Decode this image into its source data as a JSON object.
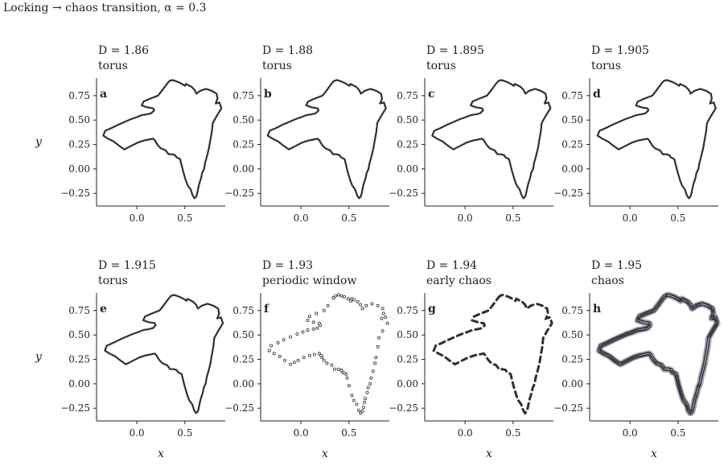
{
  "figure": {
    "title": "Locking → chaos transition, α = 0.3"
  },
  "chart_data": [
    {
      "type": "line",
      "panel_label": "a",
      "d_label": "D = 1.86",
      "regime": "torus",
      "render": "line",
      "xlabel": "",
      "ylabel": "y",
      "xticks": [
        "0.0",
        "0.5"
      ],
      "yticks": [
        "0.75",
        "0.50",
        "0.25",
        "0.00",
        "−0.25"
      ],
      "xlim": [
        -0.42,
        0.92
      ],
      "ylim": [
        -0.38,
        0.93
      ],
      "grid": false
    },
    {
      "type": "line",
      "panel_label": "b",
      "d_label": "D = 1.88",
      "regime": "torus",
      "render": "line",
      "xlabel": "",
      "ylabel": "",
      "xticks": [
        "0.0",
        "0.5"
      ],
      "yticks": [
        "0.75",
        "0.50",
        "0.25",
        "0.00",
        "−0.25"
      ],
      "xlim": [
        -0.42,
        0.92
      ],
      "ylim": [
        -0.38,
        0.93
      ],
      "grid": false
    },
    {
      "type": "line",
      "panel_label": "c",
      "d_label": "D = 1.895",
      "regime": "torus",
      "render": "line",
      "xlabel": "",
      "ylabel": "",
      "xticks": [
        "0.0",
        "0.5"
      ],
      "yticks": [
        "0.75",
        "0.50",
        "0.25",
        "0.00",
        "−0.25"
      ],
      "xlim": [
        -0.42,
        0.92
      ],
      "ylim": [
        -0.38,
        0.93
      ],
      "grid": false
    },
    {
      "type": "line",
      "panel_label": "d",
      "d_label": "D = 1.905",
      "regime": "torus",
      "render": "line",
      "xlabel": "",
      "ylabel": "",
      "xticks": [
        "0.0",
        "0.5"
      ],
      "yticks": [
        "0.75",
        "0.50",
        "0.25",
        "0.00",
        "−0.25"
      ],
      "xlim": [
        -0.42,
        0.92
      ],
      "ylim": [
        -0.38,
        0.93
      ],
      "grid": false
    },
    {
      "type": "line",
      "panel_label": "e",
      "d_label": "D = 1.915",
      "regime": "torus",
      "render": "line",
      "xlabel": "x",
      "ylabel": "y",
      "xticks": [
        "0.0",
        "0.5"
      ],
      "yticks": [
        "0.75",
        "0.50",
        "0.25",
        "0.00",
        "−0.25"
      ],
      "xlim": [
        -0.42,
        0.92
      ],
      "ylim": [
        -0.38,
        0.93
      ],
      "grid": false
    },
    {
      "type": "scatter",
      "panel_label": "f",
      "d_label": "D = 1.93",
      "regime": "periodic window",
      "render": "dots",
      "xlabel": "x",
      "ylabel": "",
      "xticks": [
        "0.0",
        "0.5"
      ],
      "yticks": [
        "0.75",
        "0.50",
        "0.25",
        "0.00",
        "−0.25"
      ],
      "xlim": [
        -0.42,
        0.92
      ],
      "ylim": [
        -0.38,
        0.93
      ],
      "grid": false
    },
    {
      "type": "line",
      "panel_label": "g",
      "d_label": "D = 1.94",
      "regime": "early chaos",
      "render": "dashes",
      "xlabel": "x",
      "ylabel": "",
      "xticks": [
        "0.0",
        "0.5"
      ],
      "yticks": [
        "0.75",
        "0.50",
        "0.25",
        "0.00",
        "−0.25"
      ],
      "xlim": [
        -0.42,
        0.92
      ],
      "ylim": [
        -0.38,
        0.93
      ],
      "grid": false
    },
    {
      "type": "line",
      "panel_label": "h",
      "d_label": "D = 1.95",
      "regime": "chaos",
      "render": "band",
      "xlabel": "x",
      "ylabel": "",
      "xticks": [
        "0.0",
        "0.5"
      ],
      "yticks": [
        "0.75",
        "0.50",
        "0.25",
        "0.00",
        "−0.25"
      ],
      "xlim": [
        -0.42,
        0.92
      ],
      "ylim": [
        -0.38,
        0.93
      ],
      "grid": false
    }
  ],
  "attractor_path": {
    "x": [
      0.32,
      0.34,
      0.37,
      0.4,
      0.43,
      0.47,
      0.5,
      0.51,
      0.53,
      0.57,
      0.6,
      0.62,
      0.66,
      0.72,
      0.78,
      0.83,
      0.84,
      0.82,
      0.86,
      0.88,
      0.83,
      0.79,
      0.78,
      0.76,
      0.75,
      0.73,
      0.71,
      0.7,
      0.68,
      0.67,
      0.65,
      0.64,
      0.63,
      0.62,
      0.6,
      0.58,
      0.56,
      0.53,
      0.51,
      0.48,
      0.46,
      0.45,
      0.43,
      0.41,
      0.4,
      0.37,
      0.33,
      0.3,
      0.25,
      0.22,
      0.2,
      0.19,
      0.17,
      0.12,
      0.07,
      0.01,
      -0.05,
      -0.09,
      -0.13,
      -0.19,
      -0.24,
      -0.3,
      -0.35,
      -0.33,
      -0.26,
      -0.2,
      -0.13,
      -0.06,
      0.0,
      0.05,
      0.11,
      0.15,
      0.18,
      0.17,
      0.11,
      0.05,
      0.07,
      0.14,
      0.22,
      0.26,
      0.32
    ],
    "y": [
      0.88,
      0.9,
      0.91,
      0.9,
      0.89,
      0.87,
      0.85,
      0.87,
      0.86,
      0.84,
      0.81,
      0.77,
      0.8,
      0.82,
      0.8,
      0.77,
      0.72,
      0.67,
      0.68,
      0.62,
      0.54,
      0.47,
      0.38,
      0.27,
      0.21,
      0.13,
      0.06,
      0.0,
      -0.04,
      -0.09,
      -0.15,
      -0.19,
      -0.24,
      -0.28,
      -0.3,
      -0.27,
      -0.21,
      -0.17,
      -0.12,
      -0.02,
      0.06,
      0.1,
      0.11,
      0.12,
      0.14,
      0.15,
      0.15,
      0.19,
      0.21,
      0.24,
      0.27,
      0.29,
      0.31,
      0.3,
      0.29,
      0.27,
      0.24,
      0.22,
      0.2,
      0.24,
      0.28,
      0.31,
      0.34,
      0.39,
      0.42,
      0.45,
      0.48,
      0.51,
      0.53,
      0.55,
      0.56,
      0.57,
      0.6,
      0.62,
      0.63,
      0.65,
      0.69,
      0.72,
      0.75,
      0.8,
      0.88
    ]
  },
  "colors": {
    "line": "#2d3038",
    "band_fill": "#8a8c94",
    "axis": "#222222"
  }
}
